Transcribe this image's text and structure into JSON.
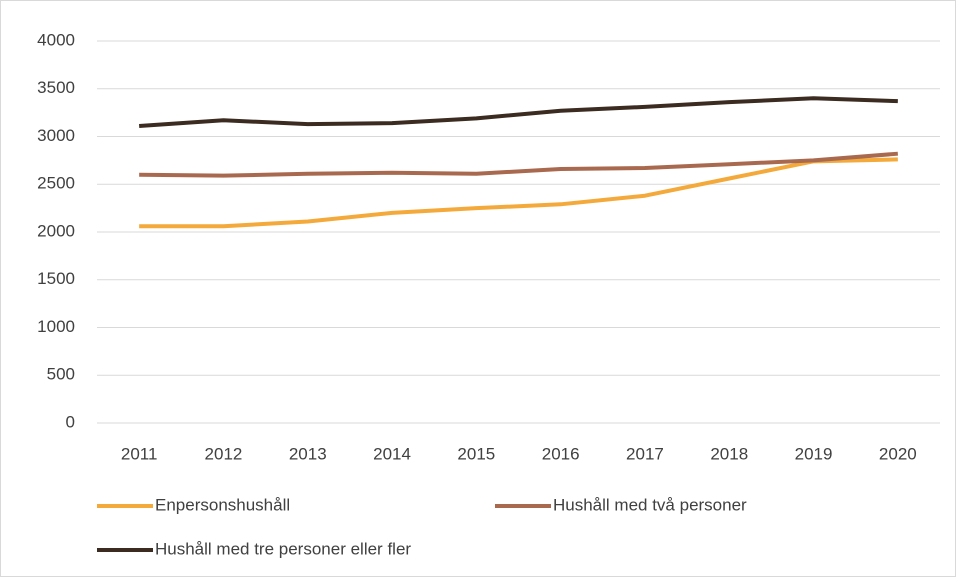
{
  "chart_data": {
    "type": "line",
    "categories": [
      "2011",
      "2012",
      "2013",
      "2014",
      "2015",
      "2016",
      "2017",
      "2018",
      "2019",
      "2020"
    ],
    "series": [
      {
        "name": "Enpersonshushåll",
        "color": "#f4a93b",
        "values": [
          2060,
          2060,
          2110,
          2200,
          2250,
          2290,
          2380,
          2560,
          2740,
          2760
        ]
      },
      {
        "name": "Hushåll med två personer",
        "color": "#a9694f",
        "values": [
          2600,
          2590,
          2610,
          2620,
          2610,
          2660,
          2670,
          2710,
          2750,
          2820
        ]
      },
      {
        "name": "Hushåll med tre personer eller fler",
        "color": "#3b2b20",
        "values": [
          3110,
          3170,
          3130,
          3140,
          3190,
          3270,
          3310,
          3360,
          3400,
          3370
        ]
      }
    ],
    "ylim": [
      0,
      4000
    ],
    "yticks": [
      0,
      500,
      1000,
      1500,
      2000,
      2500,
      3000,
      3500,
      4000
    ],
    "grid": true,
    "legend": "bottom"
  }
}
